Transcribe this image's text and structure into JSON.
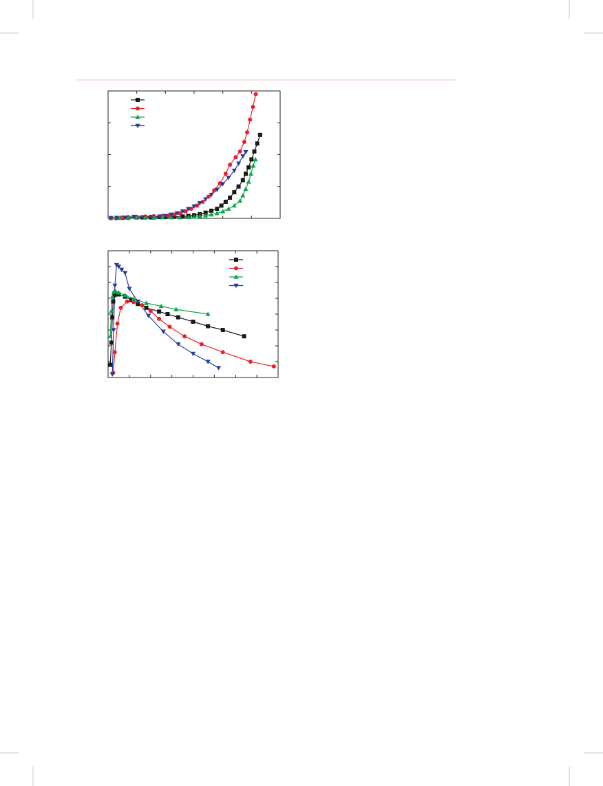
{
  "colors": {
    "black": "#1a1a1a",
    "red": "#e8202a",
    "green": "#0aa84a",
    "blue": "#2a3c9a",
    "crop_marks": "#c8c8c8",
    "header_rule": "#f3c9cc"
  },
  "chart_data": [
    {
      "type": "line",
      "title": "",
      "xlabel": "",
      "ylabel": "",
      "xlim": [
        0,
        6
      ],
      "ylim": [
        0,
        4
      ],
      "x_ticks": [
        0,
        1,
        2,
        3,
        4,
        5,
        6
      ],
      "y_ticks": [
        0,
        1,
        2,
        3,
        4
      ],
      "grid": false,
      "legend": "top-left",
      "series": [
        {
          "color": "black",
          "marker": "square",
          "points": [
            [
              0.1,
              0.01
            ],
            [
              0.3,
              0.01
            ],
            [
              0.5,
              0.02
            ],
            [
              0.7,
              0.02
            ],
            [
              1.0,
              0.03
            ],
            [
              1.2,
              0.03
            ],
            [
              1.5,
              0.03
            ],
            [
              1.8,
              0.04
            ],
            [
              2.0,
              0.04
            ],
            [
              2.3,
              0.05
            ],
            [
              2.6,
              0.06
            ],
            [
              2.8,
              0.08
            ],
            [
              3.0,
              0.1
            ],
            [
              3.2,
              0.13
            ],
            [
              3.4,
              0.18
            ],
            [
              3.6,
              0.24
            ],
            [
              3.8,
              0.3
            ],
            [
              3.95,
              0.4
            ],
            [
              4.1,
              0.52
            ],
            [
              4.25,
              0.65
            ],
            [
              4.4,
              0.82
            ],
            [
              4.55,
              1.0
            ],
            [
              4.7,
              1.2
            ],
            [
              4.8,
              1.4
            ],
            [
              4.9,
              1.6
            ],
            [
              5.0,
              1.85
            ],
            [
              5.1,
              2.1
            ],
            [
              5.2,
              2.35
            ],
            [
              5.3,
              2.62
            ]
          ]
        },
        {
          "color": "red",
          "marker": "circle",
          "points": [
            [
              0.1,
              0.01
            ],
            [
              0.3,
              0.02
            ],
            [
              0.5,
              0.03
            ],
            [
              0.7,
              0.04
            ],
            [
              1.0,
              0.05
            ],
            [
              1.3,
              0.06
            ],
            [
              1.6,
              0.07
            ],
            [
              1.9,
              0.08
            ],
            [
              2.1,
              0.09
            ],
            [
              2.3,
              0.12
            ],
            [
              2.5,
              0.16
            ],
            [
              2.7,
              0.22
            ],
            [
              2.9,
              0.3
            ],
            [
              3.1,
              0.4
            ],
            [
              3.3,
              0.52
            ],
            [
              3.5,
              0.68
            ],
            [
              3.7,
              0.88
            ],
            [
              3.9,
              1.1
            ],
            [
              4.1,
              1.4
            ],
            [
              4.25,
              1.68
            ],
            [
              4.45,
              1.92
            ],
            [
              4.6,
              2.1
            ],
            [
              4.75,
              2.4
            ],
            [
              4.85,
              2.7
            ],
            [
              4.95,
              3.1
            ],
            [
              5.05,
              3.5
            ],
            [
              5.15,
              3.9
            ]
          ]
        },
        {
          "color": "green",
          "marker": "triangle",
          "points": [
            [
              0.1,
              0.01
            ],
            [
              0.4,
              0.01
            ],
            [
              0.7,
              0.01
            ],
            [
              1.0,
              0.02
            ],
            [
              1.3,
              0.02
            ],
            [
              1.6,
              0.02
            ],
            [
              1.9,
              0.03
            ],
            [
              2.2,
              0.03
            ],
            [
              2.5,
              0.03
            ],
            [
              2.8,
              0.04
            ],
            [
              3.0,
              0.05
            ],
            [
              3.2,
              0.07
            ],
            [
              3.4,
              0.09
            ],
            [
              3.6,
              0.12
            ],
            [
              3.8,
              0.16
            ],
            [
              4.0,
              0.22
            ],
            [
              4.2,
              0.3
            ],
            [
              4.4,
              0.4
            ],
            [
              4.6,
              0.55
            ],
            [
              4.7,
              0.72
            ],
            [
              4.8,
              0.92
            ],
            [
              4.9,
              1.15
            ],
            [
              4.98,
              1.4
            ],
            [
              5.06,
              1.65
            ],
            [
              5.14,
              1.85
            ]
          ]
        },
        {
          "color": "blue",
          "marker": "triangle-down",
          "points": [
            [
              0.1,
              0.01
            ],
            [
              0.3,
              0.02
            ],
            [
              0.6,
              0.03
            ],
            [
              0.9,
              0.05
            ],
            [
              1.2,
              0.04
            ],
            [
              1.5,
              0.05
            ],
            [
              1.8,
              0.06
            ],
            [
              2.0,
              0.08
            ],
            [
              2.2,
              0.12
            ],
            [
              2.4,
              0.16
            ],
            [
              2.6,
              0.22
            ],
            [
              2.8,
              0.3
            ],
            [
              3.0,
              0.38
            ],
            [
              3.2,
              0.48
            ],
            [
              3.4,
              0.6
            ],
            [
              3.6,
              0.74
            ],
            [
              3.8,
              0.9
            ],
            [
              4.0,
              1.08
            ],
            [
              4.2,
              1.28
            ],
            [
              4.4,
              1.5
            ],
            [
              4.55,
              1.72
            ],
            [
              4.7,
              1.95
            ],
            [
              4.8,
              2.08
            ]
          ]
        }
      ]
    },
    {
      "type": "line",
      "title": "",
      "xlabel": "",
      "ylabel": "",
      "xlim": [
        0,
        4
      ],
      "ylim": [
        0,
        4
      ],
      "x_ticks": [
        0,
        0.5,
        1,
        1.5,
        2,
        2.5,
        3,
        3.5,
        4
      ],
      "y_ticks": [
        0,
        0.5,
        1,
        1.5,
        2,
        2.5,
        3,
        3.5,
        4
      ],
      "grid": false,
      "legend": "top-right",
      "series": [
        {
          "color": "black",
          "marker": "square",
          "points": [
            [
              0.05,
              0.4
            ],
            [
              0.08,
              1.1
            ],
            [
              0.1,
              1.9
            ],
            [
              0.12,
              2.4
            ],
            [
              0.15,
              2.6
            ],
            [
              0.18,
              2.65
            ],
            [
              0.25,
              2.62
            ],
            [
              0.4,
              2.55
            ],
            [
              0.55,
              2.45
            ],
            [
              0.7,
              2.32
            ],
            [
              0.9,
              2.2
            ],
            [
              1.2,
              2.08
            ],
            [
              1.4,
              2.0
            ],
            [
              1.65,
              1.9
            ],
            [
              2.0,
              1.76
            ],
            [
              2.35,
              1.62
            ],
            [
              2.7,
              1.5
            ],
            [
              3.2,
              1.3
            ]
          ]
        },
        {
          "color": "red",
          "marker": "circle",
          "points": [
            [
              0.12,
              0.15
            ],
            [
              0.16,
              0.8
            ],
            [
              0.22,
              1.7
            ],
            [
              0.3,
              2.2
            ],
            [
              0.45,
              2.4
            ],
            [
              0.6,
              2.38
            ],
            [
              0.8,
              2.28
            ],
            [
              1.0,
              2.1
            ],
            [
              1.2,
              1.85
            ],
            [
              1.45,
              1.6
            ],
            [
              1.8,
              1.3
            ],
            [
              2.2,
              1.05
            ],
            [
              2.7,
              0.8
            ],
            [
              3.35,
              0.5
            ],
            [
              3.9,
              0.35
            ]
          ]
        },
        {
          "color": "green",
          "marker": "triangle",
          "points": [
            [
              0.05,
              1.3
            ],
            [
              0.08,
              2.1
            ],
            [
              0.1,
              2.55
            ],
            [
              0.13,
              2.7
            ],
            [
              0.18,
              2.72
            ],
            [
              0.25,
              2.68
            ],
            [
              0.4,
              2.6
            ],
            [
              0.6,
              2.48
            ],
            [
              0.9,
              2.35
            ],
            [
              1.25,
              2.25
            ],
            [
              1.6,
              2.15
            ],
            [
              2.35,
              2.0
            ]
          ]
        },
        {
          "color": "blue",
          "marker": "triangle-down",
          "points": [
            [
              0.1,
              0.1
            ],
            [
              0.13,
              1.5
            ],
            [
              0.16,
              2.9
            ],
            [
              0.2,
              3.55
            ],
            [
              0.25,
              3.5
            ],
            [
              0.32,
              3.4
            ],
            [
              0.4,
              3.3
            ],
            [
              0.5,
              2.8
            ],
            [
              0.7,
              2.4
            ],
            [
              0.95,
              1.95
            ],
            [
              1.3,
              1.45
            ],
            [
              1.65,
              1.05
            ],
            [
              2.0,
              0.75
            ],
            [
              2.35,
              0.5
            ],
            [
              2.6,
              0.3
            ]
          ]
        }
      ]
    }
  ]
}
